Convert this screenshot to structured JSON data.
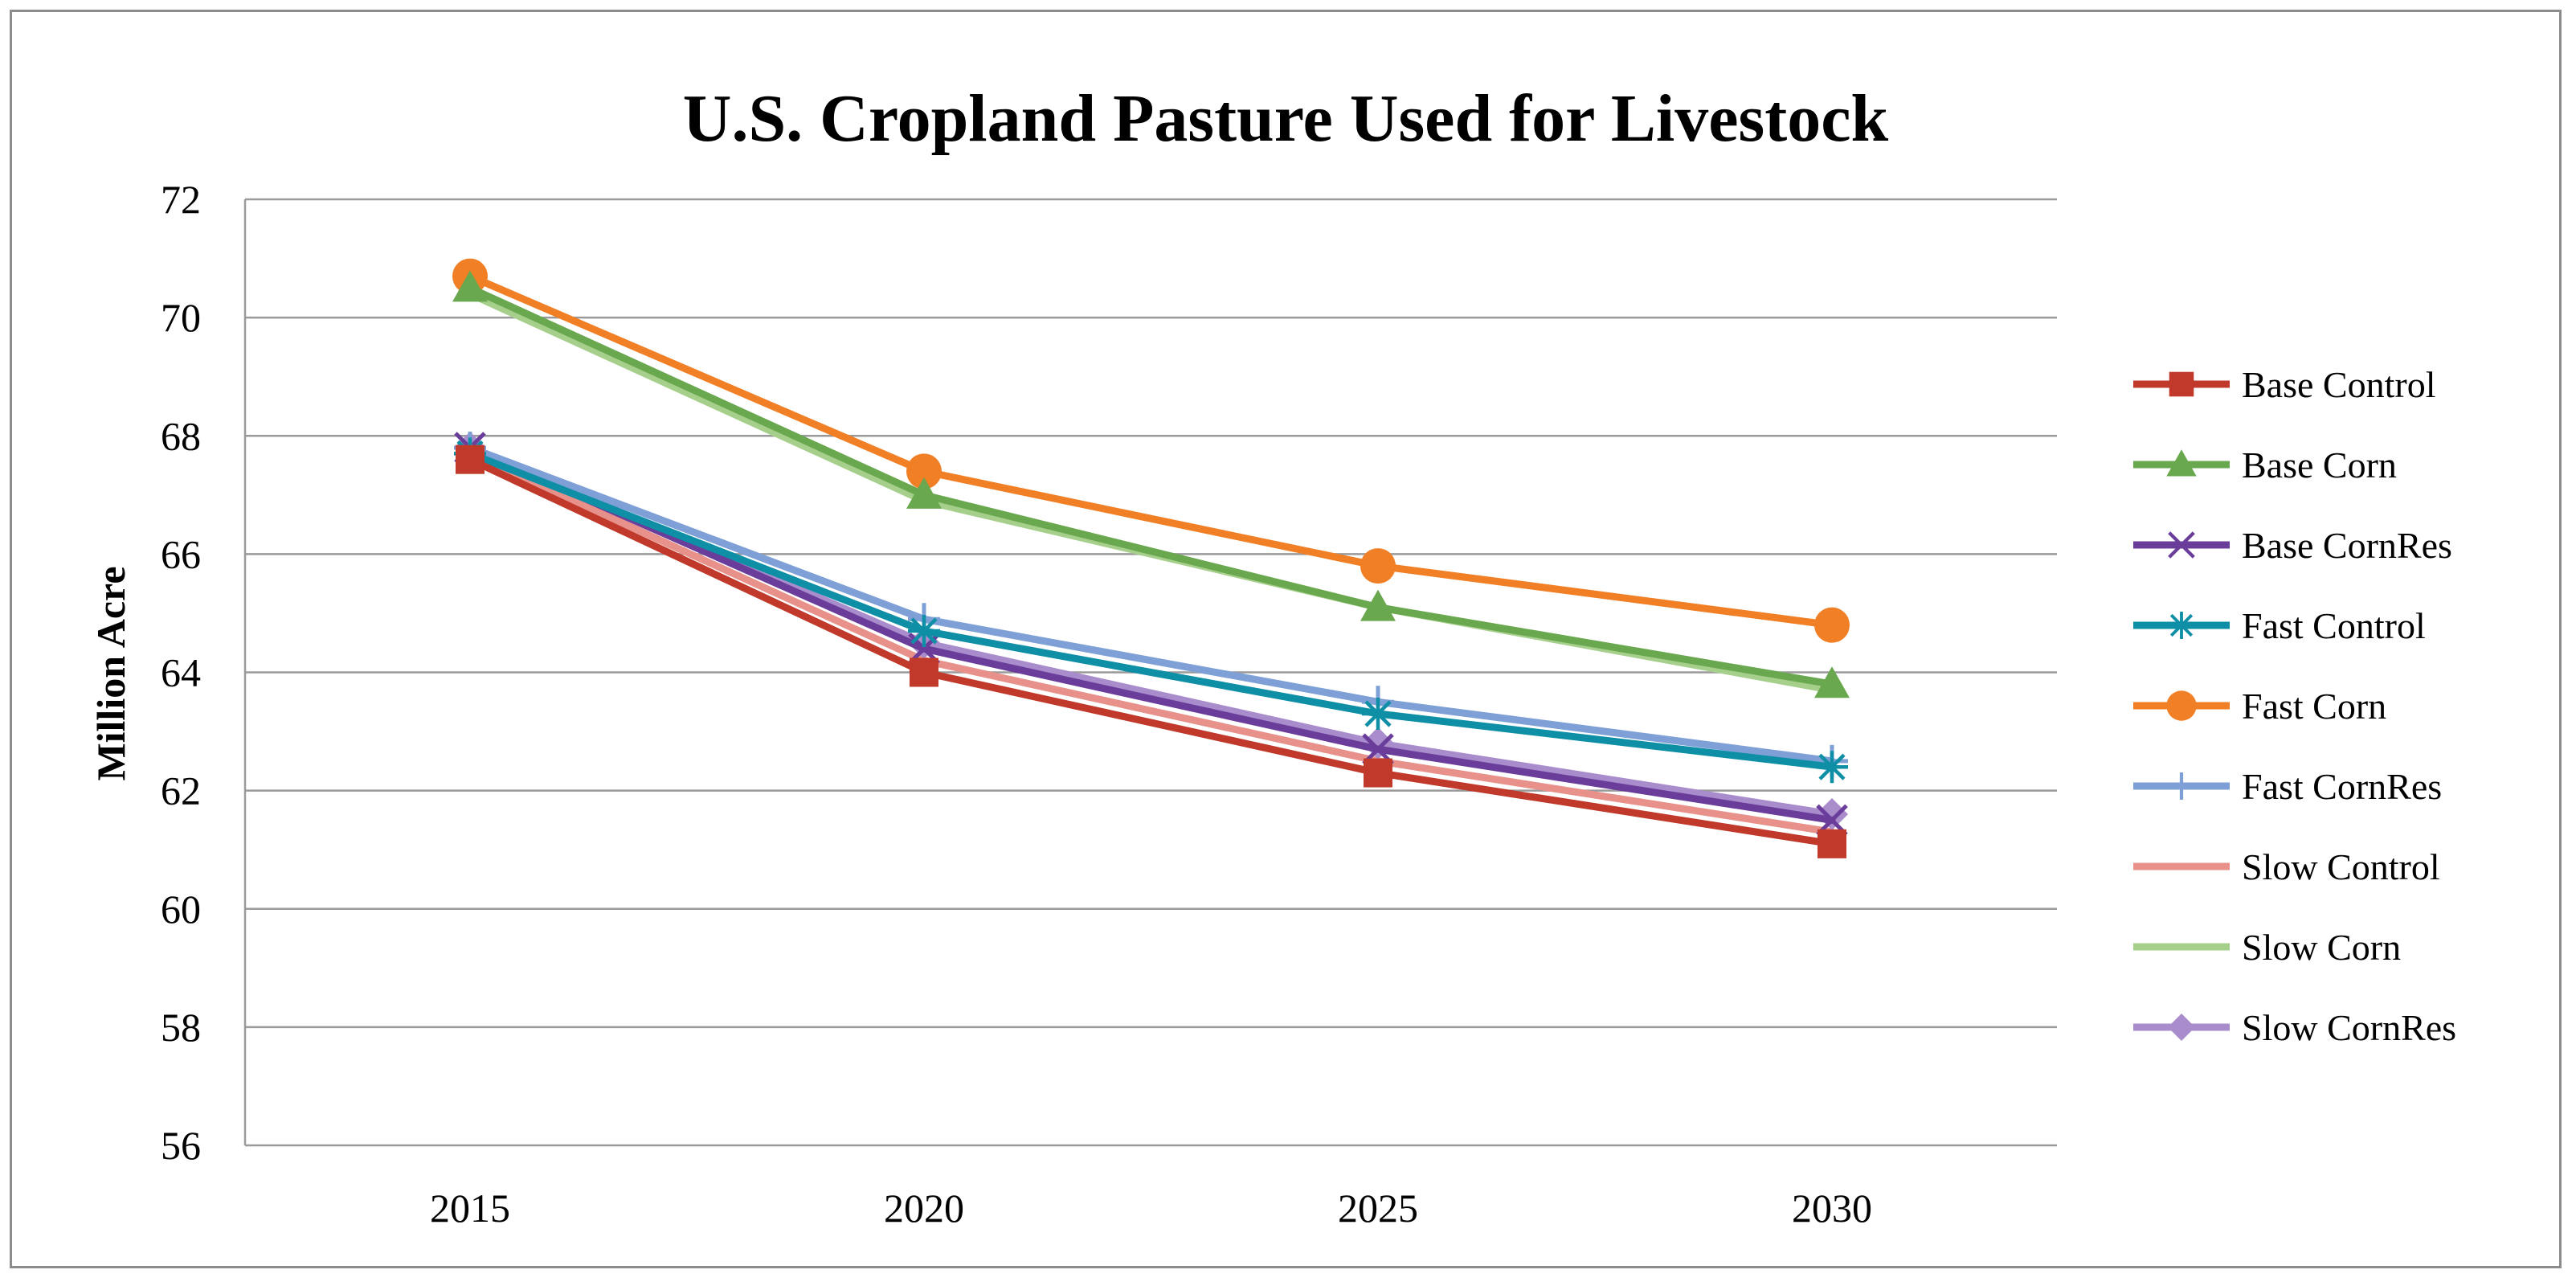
{
  "chart_data": {
    "type": "line",
    "title": "U.S. Cropland Pasture Used for Livestock",
    "xlabel": "",
    "ylabel": "Million Acre",
    "x": [
      "2015",
      "2020",
      "2025",
      "2030"
    ],
    "ylim": [
      56,
      72
    ],
    "yticks": [
      56,
      58,
      60,
      62,
      64,
      66,
      68,
      70,
      72
    ],
    "grid": true,
    "legend_position": "right",
    "series": [
      {
        "name": "Base Control",
        "color": "#c0392b",
        "marker": "square",
        "values": [
          67.6,
          64.0,
          62.3,
          61.1
        ]
      },
      {
        "name": "Base Corn",
        "color": "#6aa84f",
        "marker": "triangle",
        "values": [
          70.5,
          67.0,
          65.1,
          63.8
        ]
      },
      {
        "name": "Base CornRes",
        "color": "#6a3d9a",
        "marker": "x",
        "values": [
          67.8,
          64.4,
          62.7,
          61.5
        ]
      },
      {
        "name": "Fast Control",
        "color": "#0e8fa6",
        "marker": "asterisk",
        "values": [
          67.7,
          64.7,
          63.3,
          62.4
        ]
      },
      {
        "name": "Fast Corn",
        "color": "#f07f26",
        "marker": "circle",
        "values": [
          70.7,
          67.4,
          65.8,
          64.8
        ]
      },
      {
        "name": "Fast CornRes",
        "color": "#7ea0d6",
        "marker": "plus",
        "values": [
          67.8,
          64.9,
          63.5,
          62.5
        ]
      },
      {
        "name": "Slow Control",
        "color": "#e8908a",
        "marker": "none",
        "values": [
          67.7,
          64.2,
          62.5,
          61.3
        ]
      },
      {
        "name": "Slow Corn",
        "color": "#a6cf8c",
        "marker": "none",
        "values": [
          70.4,
          66.9,
          65.1,
          63.7
        ]
      },
      {
        "name": "Slow CornRes",
        "color": "#a98ccc",
        "marker": "diamond",
        "values": [
          67.8,
          64.5,
          62.8,
          61.6
        ]
      }
    ]
  }
}
